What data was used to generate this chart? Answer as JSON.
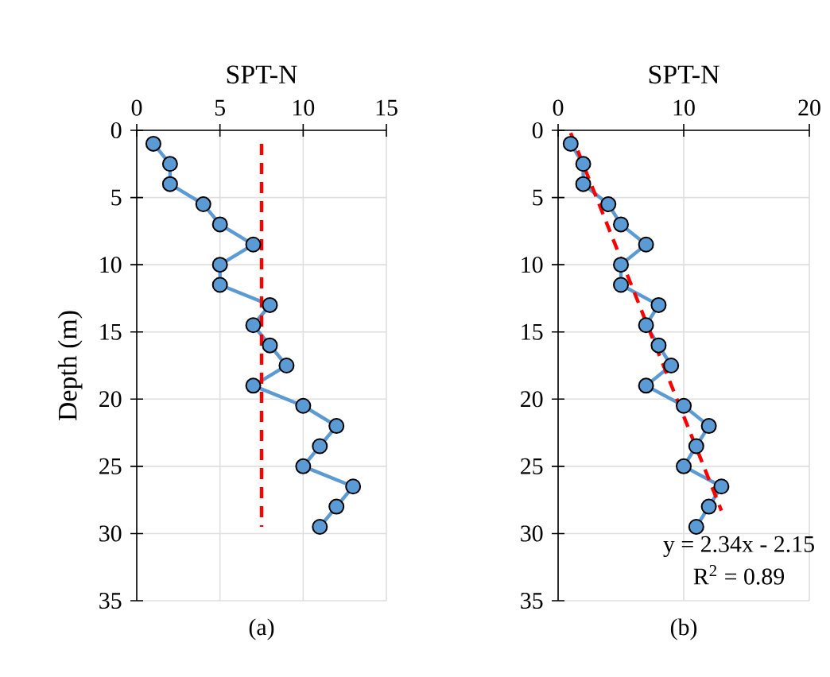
{
  "chart_data": [
    {
      "type": "line",
      "xlabel": "SPT-N",
      "ylabel": "Depth (m)",
      "xlim": [
        0,
        15
      ],
      "xticks": [
        0,
        5,
        10,
        15
      ],
      "ylim": [
        35,
        0
      ],
      "yticks": [
        0,
        5,
        10,
        15,
        20,
        25,
        30,
        35
      ],
      "grid": true,
      "annotations": [
        "(a)"
      ],
      "series": [
        {
          "color": "#5b9bd5",
          "marker": "circle",
          "line_style": "solid",
          "x": [
            1,
            2,
            2,
            4,
            5,
            7,
            5,
            5,
            8,
            7,
            8,
            9,
            7,
            10,
            12,
            11,
            10,
            13,
            12,
            11
          ],
          "values": [
            1,
            2.5,
            4,
            5.5,
            7,
            8.5,
            10,
            11.5,
            13,
            14.5,
            16,
            17.5,
            19,
            20.5,
            22,
            23.5,
            25,
            26.5,
            28,
            29.5
          ]
        },
        {
          "color": "#ff0000",
          "marker": "none",
          "line_style": "dashed",
          "x": [
            7.5,
            7.5
          ],
          "values": [
            1,
            29.5
          ]
        }
      ]
    },
    {
      "type": "line",
      "xlabel": "SPT-N",
      "xlim": [
        0,
        20
      ],
      "xticks": [
        0,
        10,
        20
      ],
      "ylim": [
        35,
        0
      ],
      "yticks": [
        0,
        5,
        10,
        15,
        20,
        25,
        30,
        35
      ],
      "grid": true,
      "annotations": [
        "y = 2.34x - 2.15",
        "R$^{2}$ = 0.89",
        "(b)"
      ],
      "series": [
        {
          "color": "#5b9bd5",
          "marker": "circle",
          "line_style": "solid",
          "x": [
            1,
            2,
            2,
            4,
            5,
            7,
            5,
            5,
            8,
            7,
            8,
            9,
            7,
            10,
            12,
            11,
            10,
            13,
            12,
            11
          ],
          "values": [
            1,
            2.5,
            4,
            5.5,
            7,
            8.5,
            10,
            11.5,
            13,
            14.5,
            16,
            17.5,
            19,
            20.5,
            22,
            23.5,
            25,
            26.5,
            28,
            29.5
          ]
        },
        {
          "color": "#ff0000",
          "marker": "none",
          "line_style": "dashed",
          "x": [
            1,
            13
          ],
          "values": [
            0.2,
            28.3
          ]
        }
      ]
    }
  ]
}
